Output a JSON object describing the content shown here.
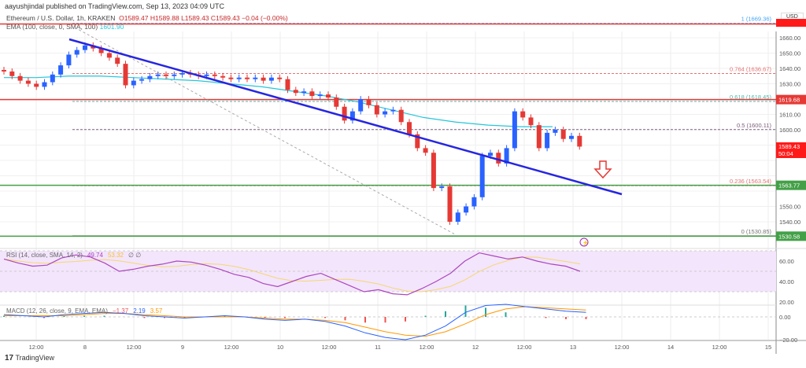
{
  "header": {
    "published": "aayushjindal published on TradingView.com, Sep 13, 2023 04:09 UTC",
    "symbol": "Ethereum / U.S. Dollar, 1h, KRAKEN",
    "ohlc": "O1589.47  H1589.88  L1589.43  C1589.43  −0.04 (−0.00%)",
    "ema_label": "EMA (100, close, 0, SMA, 100)",
    "ema_value": "1601.90",
    "currency": "USD"
  },
  "price_axis": {
    "ticks": [
      "1660.00",
      "1650.00",
      "1640.00",
      "1630.00",
      "1620.00",
      "1610.00",
      "1600.00",
      "1590.00",
      "1580.00",
      "1570.00",
      "1560.00",
      "1550.00",
      "1540.00"
    ],
    "tags": {
      "resistance": "1619.68",
      "last": "1589.43",
      "countdown": "50:04",
      "support1": "1563.77",
      "support2": "1530.58"
    }
  },
  "fib": [
    {
      "label": "1 (1669.36)",
      "color": "#42a5f5"
    },
    {
      "label": "0.764 (1636.67)",
      "color": "#e57373"
    },
    {
      "label": "0.618 (1618.45)",
      "color": "#4db6ac"
    },
    {
      "label": "0.5 (1600.11)",
      "color": "#7b5e7b"
    },
    {
      "label": "0.236 (1563.54)",
      "color": "#e57373"
    },
    {
      "label": "0 (1530.85)",
      "color": "#777"
    }
  ],
  "rsi": {
    "label": "RSI (14, close, SMA, 14, 2)",
    "value": "49.74",
    "sma": "53.32",
    "extra": "∅  ∅",
    "ticks": [
      "60.00",
      "40.00",
      "20.00"
    ],
    "values": [
      62,
      58,
      55,
      56,
      63,
      66,
      64,
      58,
      50,
      52,
      55,
      57,
      60,
      59,
      56,
      52,
      47,
      44,
      38,
      35,
      40,
      45,
      48,
      42,
      36,
      30,
      32,
      28,
      27,
      33,
      40,
      48,
      60,
      68,
      65,
      62,
      64,
      60,
      57,
      55,
      50
    ]
  },
  "macd": {
    "label": "MACD (12, 26, close, 9, EMA, EMA)",
    "hist": "−1.37",
    "macd": "2.19",
    "signal": "3.57",
    "ticks": [
      "0.00",
      "−20.00"
    ],
    "macd_values": [
      2,
      1,
      0,
      2,
      3,
      4,
      3,
      1,
      0,
      -1,
      0,
      1,
      0,
      -2,
      -3,
      -2,
      -4,
      -8,
      -14,
      -18,
      -20,
      -16,
      -8,
      4,
      10,
      11,
      9,
      7,
      5,
      4
    ],
    "signal_values": [
      1,
      1,
      1,
      1,
      2,
      3,
      3,
      2,
      1,
      0,
      0,
      0,
      0,
      -1,
      -2,
      -2,
      -3,
      -5,
      -9,
      -13,
      -16,
      -17,
      -13,
      -6,
      2,
      7,
      9,
      8,
      7,
      6
    ]
  },
  "time_axis": [
    "12:00",
    "8",
    "12:00",
    "9",
    "12:00",
    "10",
    "12:00",
    "11",
    "12:00",
    "12",
    "12:00",
    "13",
    "12:00",
    "14",
    "12:00",
    "15"
  ],
  "chart_data": {
    "type": "candlestick",
    "interval": "2h sampled closes",
    "ylim": [
      1525,
      1672
    ],
    "closes": [
      1638,
      1635,
      1632,
      1630,
      1628,
      1631,
      1636,
      1642,
      1649,
      1652,
      1655,
      1653,
      1650,
      1647,
      1643,
      1629,
      1632,
      1633,
      1635,
      1636,
      1635,
      1636,
      1637,
      1636,
      1635,
      1636,
      1635,
      1634,
      1633,
      1634,
      1633,
      1634,
      1632,
      1634,
      1633,
      1626,
      1624,
      1625,
      1622,
      1623,
      1621,
      1615,
      1606,
      1612,
      1620,
      1616,
      1610,
      1612,
      1613,
      1605,
      1597,
      1588,
      1585,
      1562,
      1563,
      1540,
      1546,
      1550,
      1556,
      1583,
      1585,
      1578,
      1588,
      1612,
      1608,
      1603,
      1588,
      1598,
      1600,
      1594,
      1596,
      1589
    ],
    "ema100": [
      1634,
      1634,
      1635,
      1635,
      1634,
      1633,
      1632,
      1630,
      1628,
      1625,
      1622,
      1618,
      1613,
      1608,
      1605,
      1603,
      1602,
      1602
    ],
    "colors": {
      "up": "#2962ff",
      "down": "#e53935",
      "trend": "#2626e0"
    }
  },
  "footer": {
    "brand": "TradingView"
  }
}
